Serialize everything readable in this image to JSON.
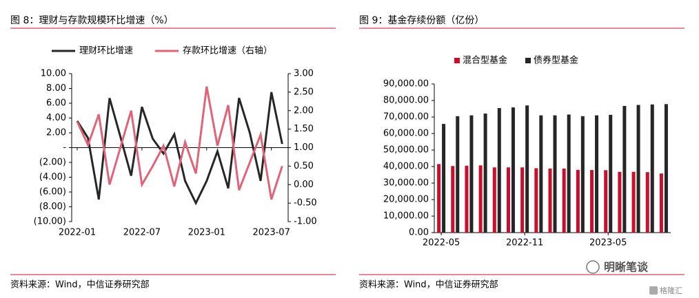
{
  "chart_data": [
    {
      "type": "line",
      "title": "图 8：理财与存款规模环比增速（%）",
      "source": "资料来源：Wind，中信证券研究部",
      "categories": [
        "2022-01",
        null,
        null,
        null,
        null,
        null,
        "2022-07",
        null,
        null,
        null,
        null,
        null,
        "2023-01",
        null,
        null,
        null,
        null,
        null,
        "2023-07",
        null
      ],
      "series": [
        {
          "name": "理财环比增速",
          "color": "#262626",
          "values": [
            3.6,
            1.3,
            -7.0,
            6.7,
            1.5,
            -3.8,
            5.5,
            1.2,
            -0.8,
            1.8,
            -4.5,
            -7.5,
            -4.5,
            -0.5,
            -5.5,
            6.7,
            2.0,
            -4.5,
            7.5,
            0.5
          ]
        },
        {
          "name": "存款环比增速（右轴）",
          "color": "#e06377",
          "axis": "y2",
          "values": [
            1.7,
            1.07,
            1.9,
            0.0,
            1.0,
            2.0,
            0.0,
            0.5,
            1.05,
            -0.05,
            1.15,
            0.3,
            2.65,
            1.05,
            2.15,
            -0.15,
            0.6,
            1.35,
            -0.4,
            0.5
          ]
        }
      ],
      "ylim": [
        -10,
        10
      ],
      "yticks": [
        {
          "value": 10,
          "label": "10.00"
        },
        {
          "value": 8,
          "label": "8.00"
        },
        {
          "value": 6,
          "label": "6.00"
        },
        {
          "value": 4,
          "label": "4.00"
        },
        {
          "value": 2,
          "label": "2.00"
        },
        {
          "value": 0,
          "label": "-"
        },
        {
          "value": -2,
          "label": "(2.00)"
        },
        {
          "value": -4,
          "label": "(4.00)"
        },
        {
          "value": -6,
          "label": "(6.00)"
        },
        {
          "value": -8,
          "label": "(8.00)"
        },
        {
          "value": -10,
          "label": "(10.00)"
        }
      ],
      "y2lim": [
        -1,
        3
      ],
      "y2ticks": [
        {
          "value": 3,
          "label": "3.00"
        },
        {
          "value": 2.5,
          "label": "2.50"
        },
        {
          "value": 2,
          "label": "2.00"
        },
        {
          "value": 1.5,
          "label": "1.50"
        },
        {
          "value": 1,
          "label": "1.00"
        },
        {
          "value": 0.5,
          "label": "0.50"
        },
        {
          "value": 0,
          "label": "0.00"
        },
        {
          "value": -0.5,
          "label": "-0.50"
        },
        {
          "value": -1,
          "label": "-1.00"
        }
      ],
      "grid": false,
      "legend": "top"
    },
    {
      "type": "bar",
      "title": "图 9：基金存续份额（亿份）",
      "source": "资料来源：Wind，中信证券研究部",
      "categories": [
        "2022-05",
        null,
        null,
        null,
        null,
        null,
        "2022-11",
        null,
        null,
        null,
        null,
        null,
        "2023-05",
        null,
        null,
        null,
        null
      ],
      "series": [
        {
          "name": "混合型基金",
          "color": "#c8102e",
          "values": [
            41500,
            40300,
            40500,
            40700,
            39500,
            39500,
            39500,
            39000,
            38800,
            38800,
            38000,
            37900,
            37800,
            36800,
            36800,
            36600,
            35800
          ]
        },
        {
          "name": "债券型基金",
          "color": "#262626",
          "values": [
            65800,
            70500,
            71000,
            72100,
            75400,
            75800,
            77000,
            71000,
            71000,
            71500,
            70500,
            71000,
            71300,
            76700,
            77300,
            77600,
            77800
          ]
        }
      ],
      "ylim": [
        0,
        90000
      ],
      "yticks": [
        {
          "value": 90000,
          "label": "90,000.00"
        },
        {
          "value": 80000,
          "label": "80,000.00"
        },
        {
          "value": 70000,
          "label": "70,000.00"
        },
        {
          "value": 60000,
          "label": "60,000.00"
        },
        {
          "value": 50000,
          "label": "50,000.00"
        },
        {
          "value": 40000,
          "label": "40,000.00"
        },
        {
          "value": 30000,
          "label": "30,000.00"
        },
        {
          "value": 20000,
          "label": "20,000.00"
        },
        {
          "value": 10000,
          "label": "10,000.00"
        },
        {
          "value": 0,
          "label": "0.00"
        }
      ],
      "grid": false,
      "legend": "top"
    }
  ],
  "watermark": [
    "明晰笔谈",
    "格隆汇"
  ]
}
